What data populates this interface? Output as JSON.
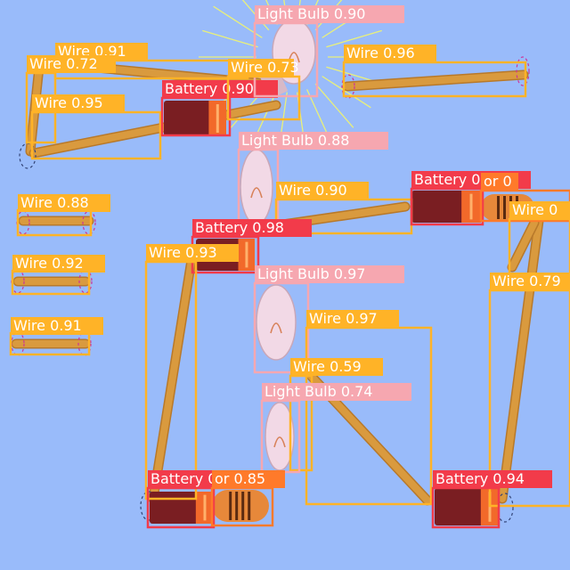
{
  "scene": {
    "background": "#99BBFA",
    "colors": {
      "wire_box": "#FFB327",
      "battery_box": "#F23B4A",
      "bulb_box": "#F6A7B0",
      "resistor_box": "#FF7A2A",
      "label_text": "#FFFFFF",
      "wire_fill": "#D99A3E",
      "wire_edge": "#B8792A",
      "battery_body": "#7A1E22",
      "battery_cap": "#F2692A",
      "bulb_glass": "#F2D9E6",
      "rays": "#E9F07A",
      "dashed_end": "#CC3399"
    }
  },
  "detections": [
    {
      "id": "wire-0",
      "cls": "wire",
      "label": "Wire 0.91"
    },
    {
      "id": "wire-1",
      "cls": "wire",
      "label": "Wire 0.72"
    },
    {
      "id": "wire-2",
      "cls": "wire",
      "label": "Wire 0.95"
    },
    {
      "id": "battery-0",
      "cls": "battery",
      "label": "Battery 0.90"
    },
    {
      "id": "light-bulb-0",
      "cls": "bulb",
      "label": "Light Bulb 0.90"
    },
    {
      "id": "wire-3",
      "cls": "wire",
      "label": "Wire 0.73"
    },
    {
      "id": "wire-4",
      "cls": "wire",
      "label": "Wire 0.96"
    },
    {
      "id": "light-bulb-1",
      "cls": "bulb",
      "label": "Light Bulb 0.88"
    },
    {
      "id": "wire-5",
      "cls": "wire",
      "label": "Wire 0.88"
    },
    {
      "id": "wire-6",
      "cls": "wire",
      "label": "Wire 0.92"
    },
    {
      "id": "wire-7",
      "cls": "wire",
      "label": "Wire 0.91"
    },
    {
      "id": "wire-8",
      "cls": "wire",
      "label": "Wire 0.90"
    },
    {
      "id": "battery-1",
      "cls": "battery",
      "label": "Battery 0.94"
    },
    {
      "id": "resistor-0",
      "cls": "resistor",
      "label": "or 0"
    },
    {
      "id": "wire-9",
      "cls": "wire",
      "label": "Wire 0"
    },
    {
      "id": "battery-2",
      "cls": "battery",
      "label": "Battery 0.98"
    },
    {
      "id": "wire-10",
      "cls": "wire",
      "label": "Wire 0.93"
    },
    {
      "id": "wire-11",
      "cls": "wire",
      "label": "Wire 0.79"
    },
    {
      "id": "light-bulb-2",
      "cls": "bulb",
      "label": "Light Bulb 0.97"
    },
    {
      "id": "wire-12",
      "cls": "wire",
      "label": "Wire 0.97"
    },
    {
      "id": "wire-13",
      "cls": "wire",
      "label": "Wire 0.59"
    },
    {
      "id": "light-bulb-3",
      "cls": "bulb",
      "label": "Light Bulb 0.74"
    },
    {
      "id": "battery-3",
      "cls": "battery",
      "label": "Battery 0.95"
    },
    {
      "id": "resistor-1",
      "cls": "resistor",
      "label": "or 0.85"
    },
    {
      "id": "battery-4",
      "cls": "battery",
      "label": "Battery 0.94"
    }
  ]
}
